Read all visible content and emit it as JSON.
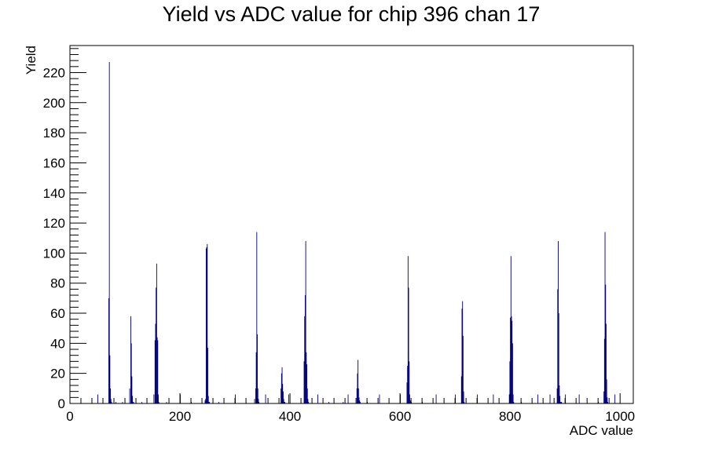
{
  "chart_data": {
    "type": "bar",
    "title": "Yield vs ADC value for chip 396 chan 17",
    "xlabel": "ADC value",
    "ylabel": "Yield",
    "xlim": [
      0,
      1024
    ],
    "ylim": [
      0,
      238
    ],
    "x_ticks": [
      0,
      200,
      400,
      600,
      800,
      1000
    ],
    "x_tick_labels": [
      "0",
      "200",
      "400",
      "600",
      "800",
      "1000"
    ],
    "y_ticks": [
      0,
      20,
      40,
      60,
      80,
      100,
      120,
      140,
      160,
      180,
      200,
      220
    ],
    "y_tick_labels": [
      "0",
      "20",
      "40",
      "60",
      "80",
      "100",
      "120",
      "140",
      "160",
      "180",
      "200",
      "220"
    ],
    "series_color": "#000080",
    "series": [
      {
        "x": [
          50,
          70,
          71,
          72,
          73,
          74,
          75,
          83,
          95,
          108,
          110,
          111,
          112,
          113,
          114,
          115,
          130,
          152,
          154,
          155,
          156,
          157,
          158,
          159,
          160,
          161,
          175,
          200,
          220,
          245,
          246,
          247,
          248,
          249,
          250,
          251,
          252,
          253,
          270,
          300,
          335,
          337,
          338,
          339,
          340,
          341,
          342,
          343,
          355,
          383,
          384,
          385,
          386,
          387,
          388,
          389,
          390,
          397,
          425,
          426,
          427,
          428,
          429,
          430,
          431,
          432,
          433,
          450,
          470,
          496,
          505,
          521,
          522,
          523,
          524,
          525,
          526,
          527,
          540,
          562,
          600,
          612,
          613,
          614,
          615,
          616,
          617,
          618,
          620,
          640,
          665,
          700,
          711,
          712,
          713,
          714,
          715,
          716,
          740,
          769,
          798,
          799,
          800,
          801,
          802,
          803,
          804,
          805,
          806,
          820,
          850,
          872,
          885,
          886,
          887,
          888,
          889,
          890,
          891,
          892,
          893,
          900,
          925,
          960,
          970,
          971,
          972,
          973,
          974,
          975,
          976,
          977,
          990
        ],
        "y": [
          6,
          70,
          227,
          32,
          10,
          3,
          1,
          1,
          1,
          10,
          58,
          40,
          18,
          5,
          1,
          1,
          1,
          6,
          42,
          53,
          77,
          93,
          44,
          42,
          6,
          1,
          1,
          6,
          1,
          2,
          3,
          103,
          104,
          106,
          37,
          5,
          1,
          1,
          1,
          6,
          3,
          10,
          34,
          114,
          46,
          10,
          3,
          1,
          6,
          10,
          20,
          24,
          13,
          8,
          3,
          1,
          1,
          6,
          28,
          58,
          72,
          108,
          34,
          26,
          10,
          3,
          1,
          6,
          1,
          1,
          6,
          10,
          20,
          29,
          10,
          4,
          2,
          1,
          1,
          6,
          6,
          14,
          25,
          98,
          77,
          28,
          6,
          2,
          1,
          1,
          6,
          6,
          18,
          63,
          68,
          45,
          8,
          1,
          6,
          6,
          6,
          28,
          57,
          98,
          58,
          55,
          40,
          6,
          1,
          1,
          6,
          6,
          10,
          76,
          108,
          60,
          12,
          5,
          1,
          1,
          1,
          6,
          6,
          1,
          8,
          43,
          114,
          79,
          53,
          16,
          4,
          1,
          6
        ]
      }
    ]
  }
}
